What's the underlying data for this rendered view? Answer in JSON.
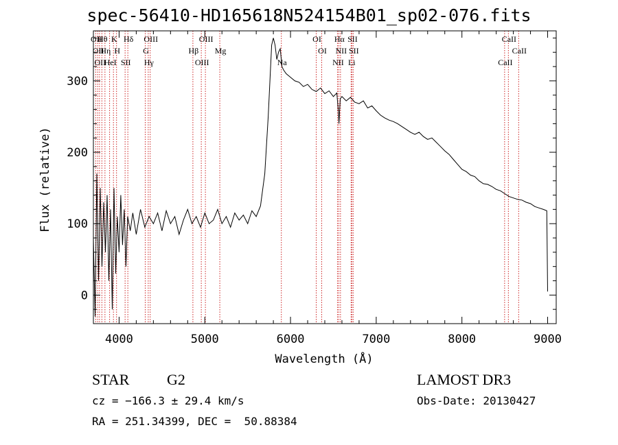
{
  "title": "spec-56410-HD165618N524154B01_sp02-076.fits",
  "footer": {
    "obj_class": "STAR",
    "subclass": "G2",
    "survey": "LAMOST DR3",
    "cz_line": "cz = −166.3 ± 29.4 km/s",
    "obs_date": "Obs-Date: 20130427",
    "coords": "RA = 251.34399, DEC =  50.88384"
  },
  "chart_data": {
    "type": "line",
    "title": "spec-56410-HD165618N524154B01_sp02-076.fits",
    "xlabel": "Wavelength (Å)",
    "ylabel": "Flux (relative)",
    "xlim": [
      3700,
      9100
    ],
    "ylim": [
      -40,
      370
    ],
    "xticks": [
      4000,
      5000,
      6000,
      7000,
      8000,
      9000
    ],
    "yticks": [
      0,
      100,
      200,
      300
    ],
    "series": [
      {
        "name": "spectrum",
        "x": [
          3700,
          3720,
          3740,
          3760,
          3780,
          3800,
          3820,
          3840,
          3860,
          3880,
          3900,
          3920,
          3940,
          3960,
          3980,
          4000,
          4020,
          4040,
          4060,
          4080,
          4100,
          4130,
          4160,
          4200,
          4250,
          4300,
          4350,
          4400,
          4450,
          4500,
          4550,
          4600,
          4650,
          4700,
          4750,
          4800,
          4850,
          4900,
          4950,
          5000,
          5050,
          5100,
          5150,
          5200,
          5250,
          5300,
          5350,
          5400,
          5450,
          5500,
          5550,
          5600,
          5650,
          5700,
          5720,
          5740,
          5760,
          5780,
          5800,
          5820,
          5840,
          5860,
          5880,
          5900,
          5920,
          5950,
          6000,
          6050,
          6100,
          6150,
          6200,
          6250,
          6300,
          6350,
          6400,
          6450,
          6500,
          6540,
          6560,
          6565,
          6580,
          6600,
          6650,
          6700,
          6750,
          6800,
          6850,
          6900,
          6950,
          7000,
          7050,
          7100,
          7150,
          7200,
          7250,
          7300,
          7350,
          7400,
          7450,
          7500,
          7550,
          7600,
          7650,
          7700,
          7750,
          7800,
          7850,
          7900,
          7950,
          8000,
          8050,
          8100,
          8150,
          8200,
          8250,
          8300,
          8350,
          8400,
          8450,
          8500,
          8550,
          8600,
          8650,
          8700,
          8750,
          8800,
          8850,
          8900,
          8950,
          8990,
          9000
        ],
        "y": [
          80,
          -30,
          170,
          20,
          150,
          40,
          130,
          60,
          140,
          20,
          120,
          -20,
          150,
          30,
          110,
          60,
          140,
          70,
          120,
          40,
          110,
          90,
          115,
          85,
          120,
          95,
          110,
          100,
          115,
          90,
          118,
          100,
          110,
          85,
          105,
          120,
          100,
          110,
          95,
          115,
          100,
          105,
          120,
          100,
          110,
          95,
          115,
          105,
          112,
          100,
          118,
          110,
          125,
          170,
          210,
          250,
          300,
          350,
          360,
          350,
          330,
          340,
          345,
          320,
          315,
          310,
          305,
          300,
          298,
          292,
          295,
          288,
          285,
          290,
          282,
          286,
          278,
          283,
          255,
          240,
          275,
          278,
          272,
          277,
          270,
          268,
          272,
          262,
          265,
          258,
          252,
          248,
          245,
          243,
          240,
          236,
          232,
          228,
          225,
          228,
          222,
          218,
          220,
          214,
          208,
          202,
          197,
          190,
          183,
          176,
          173,
          168,
          166,
          160,
          156,
          155,
          152,
          148,
          146,
          142,
          138,
          136,
          134,
          133,
          130,
          128,
          124,
          122,
          120,
          118,
          5
        ]
      }
    ],
    "line_markers": [
      {
        "wave": 3727,
        "label": "OII"
      },
      {
        "wave": 3750,
        "label": "OII"
      },
      {
        "wave": 3771,
        "label": "OII"
      },
      {
        "wave": 3799,
        "label": "Hθ"
      },
      {
        "wave": 3835,
        "label": "Hη"
      },
      {
        "wave": 3889,
        "label": "HeI"
      },
      {
        "wave": 3934,
        "label": "K"
      },
      {
        "wave": 3970,
        "label": "H"
      },
      {
        "wave": 4070,
        "label": "SII"
      },
      {
        "wave": 4102,
        "label": "Hδ"
      },
      {
        "wave": 4305,
        "label": "G"
      },
      {
        "wave": 4340,
        "label": "Hγ"
      },
      {
        "wave": 4363,
        "label": "OIII"
      },
      {
        "wave": 4861,
        "label": "Hβ"
      },
      {
        "wave": 4959,
        "label": "OIII"
      },
      {
        "wave": 5007,
        "label": "OIII"
      },
      {
        "wave": 5175,
        "label": "Mg"
      },
      {
        "wave": 5893,
        "label": "Na"
      },
      {
        "wave": 6300,
        "label": "OI"
      },
      {
        "wave": 6364,
        "label": "OI"
      },
      {
        "wave": 6548,
        "label": "NII"
      },
      {
        "wave": 6563,
        "label": "Hα"
      },
      {
        "wave": 6583,
        "label": "NII"
      },
      {
        "wave": 6707,
        "label": "Li"
      },
      {
        "wave": 6716,
        "label": "SII"
      },
      {
        "wave": 6731,
        "label": "SII"
      },
      {
        "wave": 8498,
        "label": "CaII"
      },
      {
        "wave": 8542,
        "label": "CaII"
      },
      {
        "wave": 8662,
        "label": "CaII"
      }
    ]
  }
}
